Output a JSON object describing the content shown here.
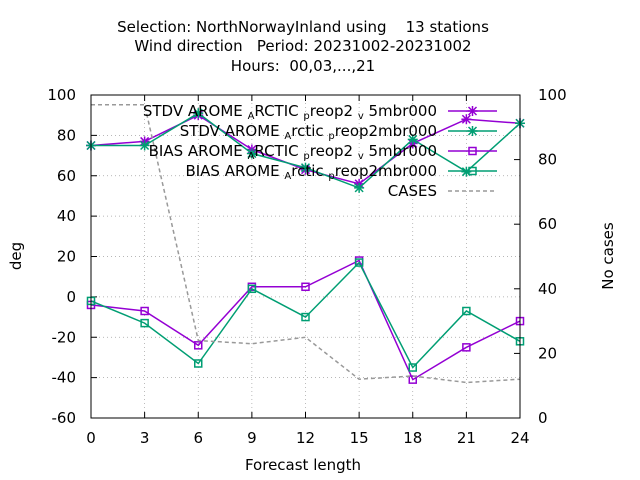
{
  "chart_data": {
    "type": "line",
    "title_lines": [
      "Selection: NorthNorwayInland using    13 stations",
      "Wind direction   Period: 20231002-20231002",
      "Hours:  00,03,...,21"
    ],
    "xlabel": "Forecast length",
    "ylabel": "deg",
    "y2label": "No cases",
    "x": [
      0,
      3,
      6,
      9,
      12,
      15,
      18,
      21,
      24
    ],
    "xlim": [
      0,
      24
    ],
    "ylim": [
      -60,
      100
    ],
    "y2lim": [
      0,
      100
    ],
    "x_ticks": [
      "0",
      "3",
      "6",
      "9",
      "12",
      "15",
      "18",
      "21",
      "24"
    ],
    "y_ticks": [
      "-60",
      "-40",
      "-20",
      "0",
      "20",
      "40",
      "60",
      "80",
      "100"
    ],
    "y2_ticks": [
      "0",
      "20",
      "40",
      "60",
      "80",
      "100"
    ],
    "grid": true,
    "legend_position": "top-right",
    "series": [
      {
        "name_parts": [
          "STDV AROME",
          "A",
          "RCTIC",
          "p",
          "reop2",
          "v",
          "5mbr000"
        ],
        "axis": "left",
        "color": "#9400d3",
        "marker": "x",
        "values": [
          75,
          77,
          90,
          73,
          63,
          56,
          76,
          88,
          86
        ]
      },
      {
        "name_parts": [
          "STDV AROME",
          "A",
          "rctic",
          "p",
          "reop2mbr000"
        ],
        "axis": "left",
        "color": "#009e73",
        "marker": "x",
        "values": [
          75,
          75,
          91,
          71,
          64,
          54,
          78,
          62,
          86
        ]
      },
      {
        "name_parts": [
          "BIAS AROME",
          "A",
          "RCTIC",
          "p",
          "reop2",
          "v",
          "5mbr000"
        ],
        "axis": "left",
        "color": "#9400d3",
        "marker": "square",
        "values": [
          -4,
          -7,
          -24,
          5,
          5,
          18,
          -41,
          -25,
          -12
        ]
      },
      {
        "name_parts": [
          "BIAS AROME",
          "A",
          "rctic",
          "p",
          "reop2mbr000"
        ],
        "axis": "left",
        "color": "#009e73",
        "marker": "square",
        "values": [
          -2,
          -13,
          -33,
          4,
          -10,
          17,
          -35,
          -7,
          -22
        ]
      },
      {
        "name_parts": [
          "CASES"
        ],
        "axis": "right",
        "color": "#999999",
        "marker": "none",
        "dashed": true,
        "values": [
          97,
          97,
          24,
          23,
          25,
          12,
          13,
          11,
          12
        ]
      }
    ]
  }
}
